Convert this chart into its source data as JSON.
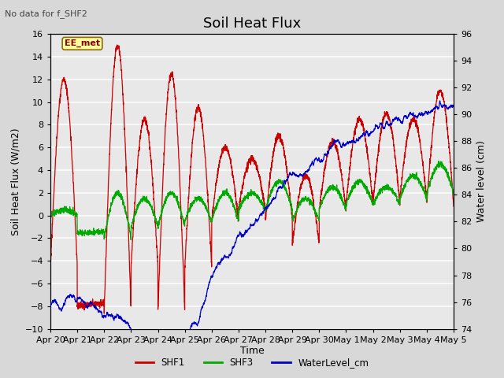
{
  "title": "Soil Heat Flux",
  "top_left_text": "No data for f_SHF2",
  "annotation_text": "EE_met",
  "xlabel": "Time",
  "ylabel_left": "Soil Heat Flux (W/m2)",
  "ylabel_right": "Water level (cm)",
  "ylim_left": [
    -10,
    16
  ],
  "ylim_right": [
    74,
    96
  ],
  "yticks_left": [
    -10,
    -8,
    -6,
    -4,
    -2,
    0,
    2,
    4,
    6,
    8,
    10,
    12,
    14,
    16
  ],
  "yticks_right": [
    74,
    76,
    78,
    80,
    82,
    84,
    86,
    88,
    90,
    92,
    94,
    96
  ],
  "background_color": "#d8d8d8",
  "plot_bg_color": "#e8e8e8",
  "grid_color": "#f8f8f8",
  "shf1_color": "#cc0000",
  "shf3_color": "#00aa00",
  "water_color": "#0000cc",
  "title_fontsize": 13,
  "axis_fontsize": 9,
  "tick_fontsize": 8,
  "tick_labels": [
    "Apr 20",
    "Apr 21",
    "Apr 22",
    "Apr 23",
    "Apr 24",
    "Apr 25",
    "Apr 26",
    "Apr 27",
    "Apr 28",
    "Apr 29",
    "Apr 30",
    "May 1",
    "May 2",
    "May 3",
    "May 4",
    "May 5"
  ]
}
